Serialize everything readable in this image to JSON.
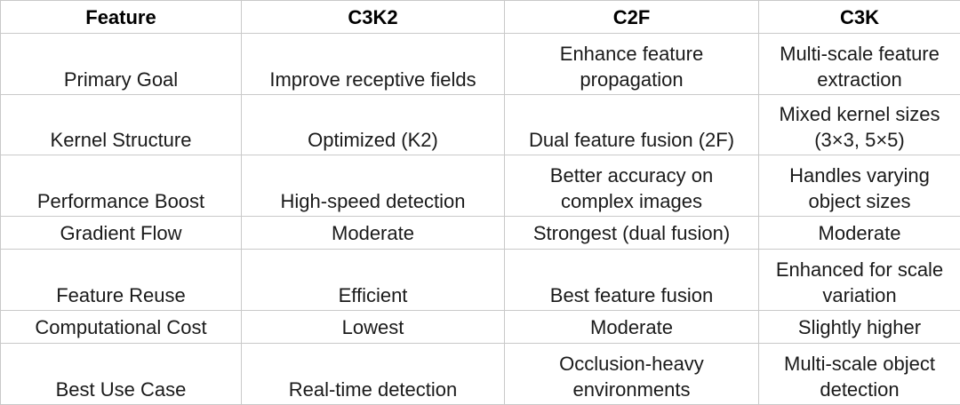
{
  "headers": [
    "Feature",
    "C3K2",
    "C2F",
    "C3K"
  ],
  "rows": [
    [
      "Primary Goal",
      "Improve receptive fields",
      "Enhance feature\npropagation",
      "Multi-scale feature\nextraction"
    ],
    [
      "Kernel Structure",
      "Optimized (K2)",
      "Dual feature fusion (2F)",
      "Mixed kernel sizes\n(3×3, 5×5)"
    ],
    [
      "Performance Boost",
      "High-speed detection",
      "Better accuracy on\ncomplex images",
      "Handles varying\nobject sizes"
    ],
    [
      "Gradient Flow",
      "Moderate",
      "Strongest (dual fusion)",
      "Moderate"
    ],
    [
      "Feature Reuse",
      "Efficient",
      "Best feature fusion",
      "Enhanced for scale\nvariation"
    ],
    [
      "Computational Cost",
      "Lowest",
      "Moderate",
      "Slightly higher"
    ],
    [
      "Best Use Case",
      "Real-time detection",
      "Occlusion-heavy\nenvironments",
      "Multi-scale object\ndetection"
    ]
  ]
}
